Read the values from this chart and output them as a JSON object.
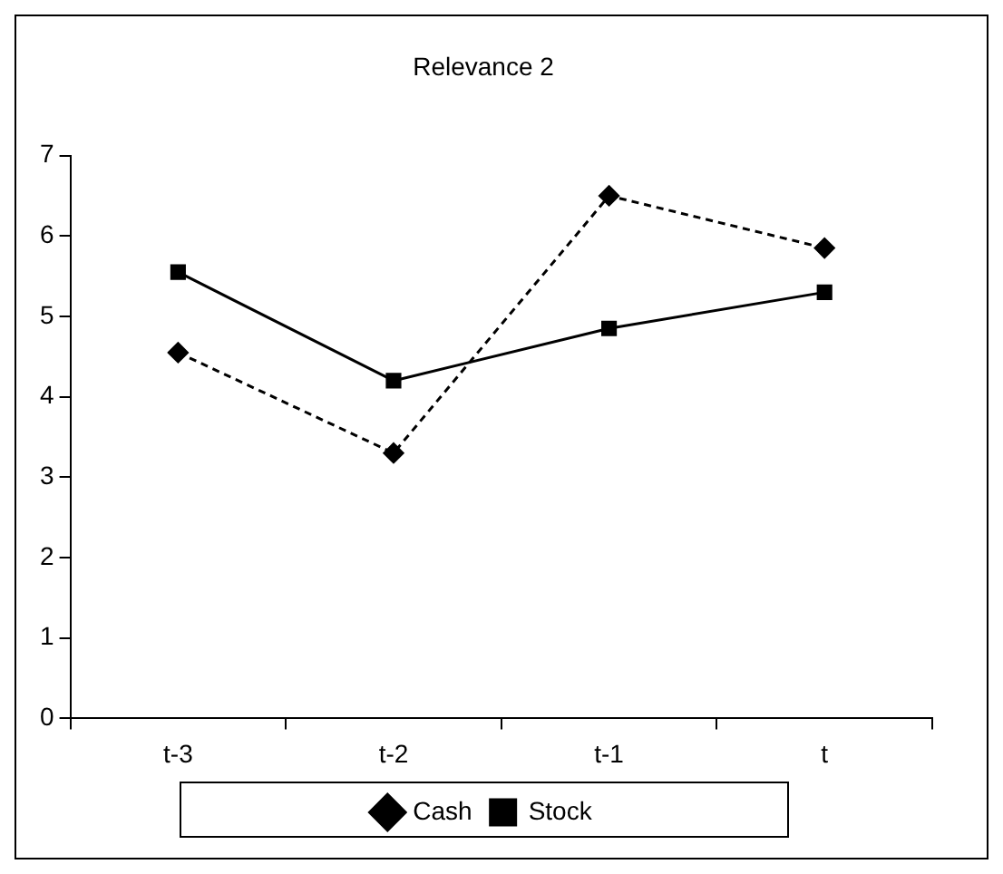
{
  "chart_data": {
    "type": "line",
    "title": "Relevance 2",
    "categories": [
      "t-3",
      "t-2",
      "t-1",
      "t"
    ],
    "series": [
      {
        "name": "Cash",
        "color": "#000000",
        "values": [
          4.55,
          3.3,
          6.5,
          5.85
        ],
        "marker": "diamond",
        "line_style": "dashed"
      },
      {
        "name": "Stock",
        "color": "#000000",
        "values": [
          5.55,
          4.2,
          4.85,
          5.3
        ],
        "marker": "square",
        "line_style": "solid"
      }
    ],
    "ylim": [
      0,
      7
    ],
    "yticks": [
      0,
      1,
      2,
      3,
      4,
      5,
      6,
      7
    ],
    "grid": false,
    "legend": "bottom"
  }
}
